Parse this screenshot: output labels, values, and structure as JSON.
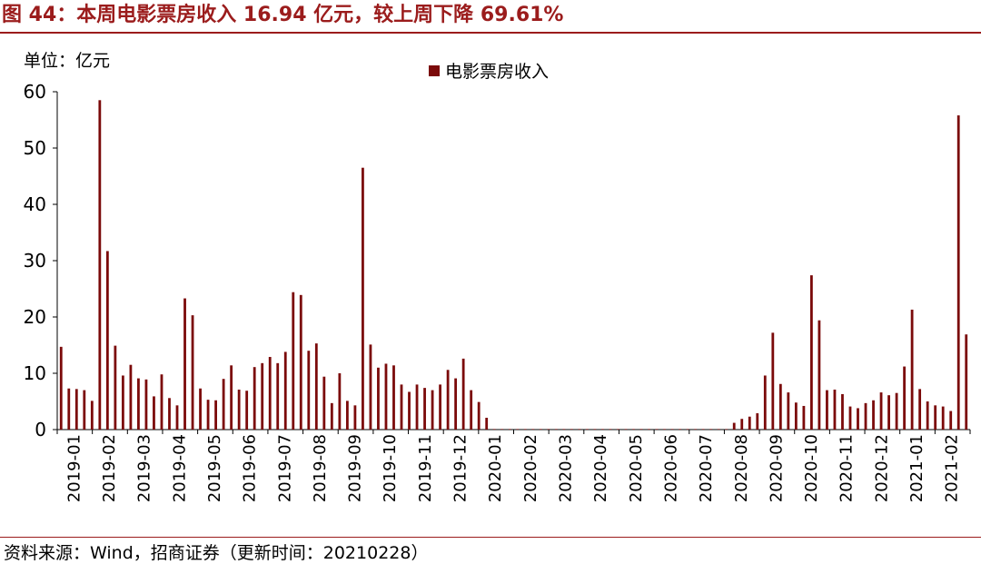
{
  "title": "图 44：本周电影票房收入 16.94 亿元，较上周下降 69.61%",
  "unit_label": "单位：亿元",
  "source": "资料来源：Wind，招商证券（更新时间：20210228）",
  "colors": {
    "bar": "#7b0a0a",
    "title": "#9b1c1c"
  },
  "chart_data": {
    "type": "bar",
    "title": "",
    "xlabel": "",
    "ylabel": "",
    "ylim": [
      0,
      60
    ],
    "yticks": [
      0,
      10,
      20,
      30,
      40,
      50,
      60
    ],
    "grid": false,
    "legend_position": "top-center",
    "x_tick_labels": [
      "2019-01",
      "2019-02",
      "2019-03",
      "2019-04",
      "2019-05",
      "2019-06",
      "2019-07",
      "2019-08",
      "2019-09",
      "2019-10",
      "2019-11",
      "2019-12",
      "2020-01",
      "2020-02",
      "2020-03",
      "2020-04",
      "2020-05",
      "2020-06",
      "2020-07",
      "2020-08",
      "2020-09",
      "2020-10",
      "2020-11",
      "2020-12",
      "2021-01",
      "2021-02"
    ],
    "series": [
      {
        "name": "电影票房收入",
        "values": [
          14.7,
          7.3,
          7.2,
          7.0,
          5.1,
          58.5,
          31.7,
          14.9,
          9.6,
          11.5,
          9.1,
          8.9,
          5.9,
          9.8,
          5.6,
          4.3,
          23.3,
          20.3,
          7.3,
          5.3,
          5.2,
          9.0,
          11.4,
          7.1,
          6.9,
          11.1,
          11.8,
          12.9,
          11.8,
          13.8,
          24.4,
          23.9,
          14.0,
          15.3,
          9.4,
          4.7,
          10.0,
          5.1,
          4.3,
          46.5,
          15.1,
          11.0,
          11.7,
          11.4,
          8.0,
          6.7,
          8.0,
          7.4,
          7.0,
          8.0,
          10.6,
          9.1,
          12.6,
          7.0,
          4.9,
          2.1,
          0.1,
          0.1,
          0.1,
          0.1,
          0.1,
          0.1,
          0.1,
          0.1,
          0.1,
          0.1,
          0.1,
          0.1,
          0.1,
          0.1,
          0.1,
          0.1,
          0.1,
          0.1,
          0.1,
          0.1,
          0.1,
          0.1,
          0.1,
          0.1,
          0.1,
          0.1,
          0.1,
          0.1,
          0.1,
          0.1,
          0.1,
          1.2,
          1.9,
          2.3,
          2.9,
          9.6,
          17.2,
          8.1,
          6.6,
          4.8,
          4.2,
          27.4,
          19.4,
          7.0,
          7.1,
          6.3,
          4.1,
          3.8,
          4.7,
          5.2,
          6.6,
          6.1,
          6.5,
          11.2,
          21.3,
          7.2,
          5.0,
          4.3,
          4.1,
          3.3,
          55.8,
          16.9
        ]
      }
    ]
  }
}
